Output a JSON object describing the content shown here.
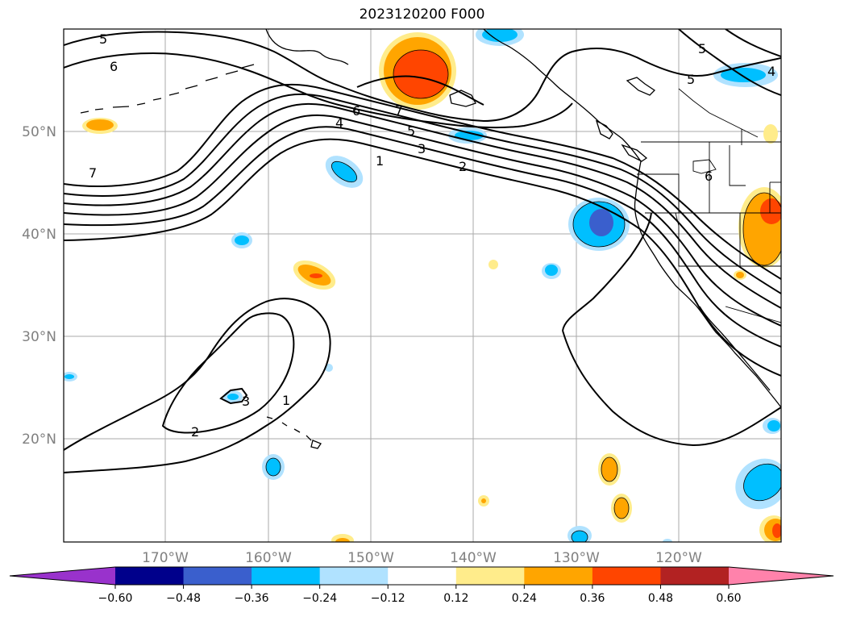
{
  "title": "2023120200 F000",
  "map": {
    "lat_labels": [
      "50°N",
      "40°N",
      "30°N",
      "20°N"
    ],
    "lon_labels": [
      "170°W",
      "160°W",
      "150°W",
      "140°W",
      "130°W",
      "120°W"
    ],
    "contour_labels": [
      "5",
      "6",
      "7",
      "6",
      "7",
      "4",
      "5",
      "3",
      "1",
      "2",
      "6",
      "5",
      "5",
      "4",
      "1",
      "2",
      "3"
    ]
  },
  "colorbar": {
    "ticks": [
      "−0.60",
      "−0.48",
      "−0.36",
      "−0.24",
      "−0.12",
      "0.12",
      "0.24",
      "0.36",
      "0.48",
      "0.60"
    ],
    "colors": [
      "#9932CC",
      "#00008B",
      "#3A5FCD",
      "#00BFFF",
      "#B0E2FF",
      "#FFFFFF",
      "#FFEC8B",
      "#FFA500",
      "#FF4500",
      "#B22222",
      "#FF82AB"
    ]
  }
}
